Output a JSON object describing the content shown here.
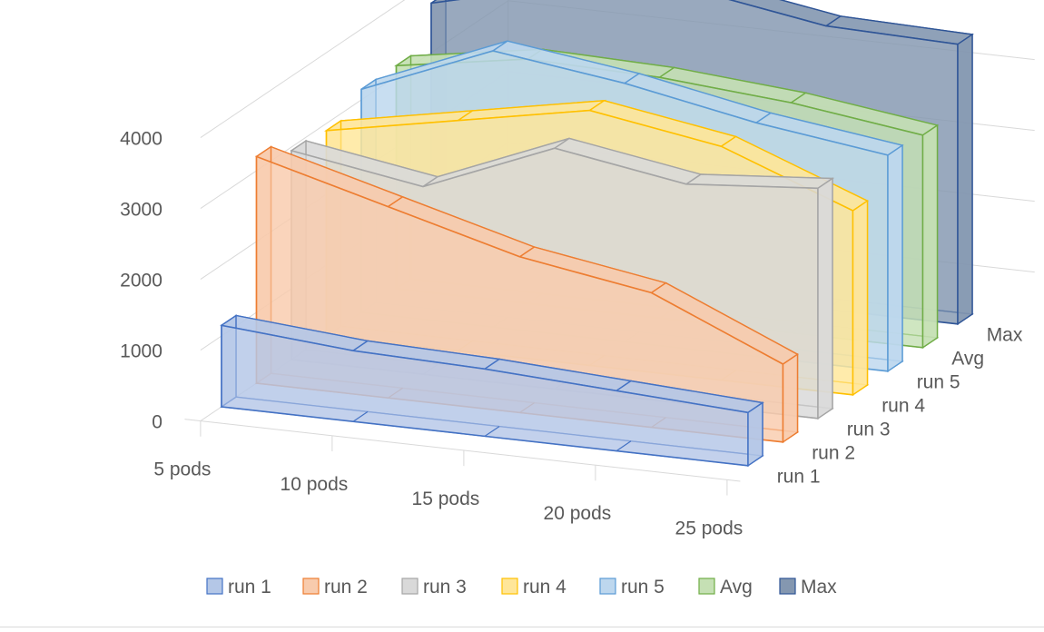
{
  "chart_data": {
    "type": "area",
    "style": "3d",
    "categories": [
      "5 pods",
      "10 pods",
      "15 pods",
      "20 pods",
      "25 pods"
    ],
    "yticks": [
      "0",
      "1000",
      "2000",
      "3000",
      "4000"
    ],
    "ylim": [
      0,
      4000
    ],
    "depth_labels": [
      "run 1",
      "run 2",
      "run 3",
      "run 4",
      "run 5",
      "Avg",
      "Max"
    ],
    "legend_position": "bottom",
    "series": [
      {
        "name": "run 1",
        "values": [
          1150,
          1000,
          950,
          850,
          750
        ],
        "fill": "#b4c7e7",
        "stroke": "#4472c4"
      },
      {
        "name": "run 2",
        "values": [
          3200,
          2700,
          2200,
          1900,
          1100
        ],
        "fill": "#f8cbad",
        "stroke": "#ed7d31"
      },
      {
        "name": "run 3",
        "values": [
          2950,
          2650,
          3400,
          3100,
          3250
        ],
        "fill": "#d9d9d9",
        "stroke": "#a5a5a5"
      },
      {
        "name": "run 4",
        "values": [
          2900,
          3250,
          3600,
          3300,
          2600
        ],
        "fill": "#ffe699",
        "stroke": "#ffc000"
      },
      {
        "name": "run 5",
        "values": [
          3150,
          3900,
          3650,
          3300,
          3050
        ],
        "fill": "#bdd7ee",
        "stroke": "#5b9bd5"
      },
      {
        "name": "Avg",
        "values": [
          3150,
          3450,
          3400,
          3250,
          3000
        ],
        "fill": "#c5e0b4",
        "stroke": "#70ad47"
      },
      {
        "name": "Max",
        "values": [
          3700,
          4150,
          4300,
          4000,
          3950
        ],
        "fill": "#8497b0",
        "stroke": "#2f5597"
      }
    ]
  }
}
